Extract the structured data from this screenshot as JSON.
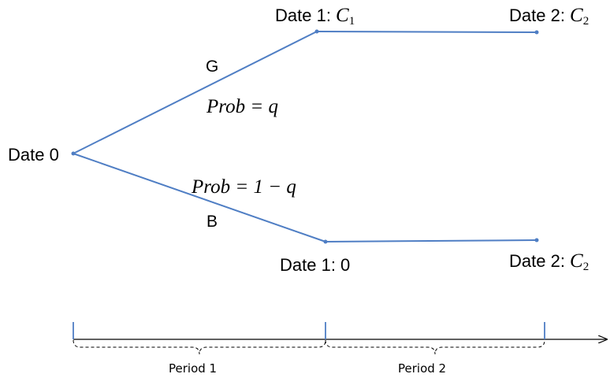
{
  "nodes": {
    "date0": "Date 0",
    "date1_good_prefix": "Date 1: ",
    "date1_good_var": "C",
    "date1_good_sub": "1",
    "date2_good_prefix": "Date 2: ",
    "date2_good_var": "C",
    "date2_good_sub": "2",
    "date1_bad": "Date 1: 0",
    "date2_bad_prefix": "Date 2: ",
    "date2_bad_var": "C",
    "date2_bad_sub": "2"
  },
  "branches": {
    "good": {
      "label": "G",
      "prob_word": "Prob",
      "prob_value": "= q"
    },
    "bad": {
      "label": "B",
      "prob_word": "Prob",
      "prob_value": "= 1 − q"
    }
  },
  "timeline": {
    "period1": "Period 1",
    "period2": "Period 2"
  },
  "colors": {
    "tree_line": "#4F7EC4",
    "timeline_axis": "#000000",
    "tick": "#4F7EC4"
  }
}
